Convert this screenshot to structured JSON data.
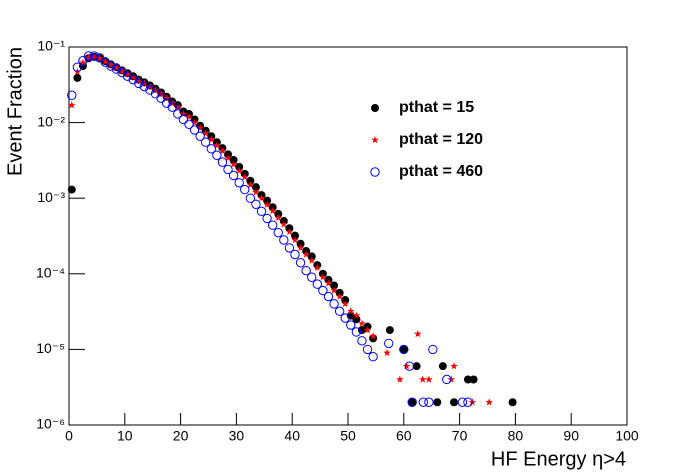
{
  "chart_data": {
    "type": "scatter",
    "x_label": "HF Energy η>4",
    "y_label": "Event Fraction",
    "log_y": true,
    "xlim": [
      0,
      100
    ],
    "xticks": [
      0,
      10,
      20,
      30,
      40,
      50,
      60,
      70,
      80,
      90,
      100
    ],
    "ylim": [
      1e-06,
      0.1
    ],
    "yticks": [
      {
        "value": 1e-06,
        "label": "10⁻⁶"
      },
      {
        "value": 1e-05,
        "label": "10⁻⁵"
      },
      {
        "value": 0.0001,
        "label": "10⁻⁴"
      },
      {
        "value": 0.001,
        "label": "10⁻³"
      },
      {
        "value": 0.01,
        "label": "10⁻²"
      },
      {
        "value": 0.1,
        "label": "10⁻¹"
      }
    ],
    "series": [
      {
        "name": "pthat = 15",
        "color": "#000000",
        "marker": "filled-circle",
        "x": [
          0.5,
          1.5,
          2.5,
          3.5,
          4.5,
          5.5,
          6.5,
          7.5,
          8.5,
          9.5,
          10.5,
          11.5,
          12.5,
          13.5,
          14.5,
          15.5,
          16.5,
          17.5,
          18.5,
          19.5,
          20.5,
          21.5,
          22.5,
          23.5,
          24.5,
          25.5,
          26.5,
          27.5,
          28.5,
          29.5,
          30.5,
          31.5,
          32.5,
          33.5,
          34.5,
          35.5,
          36.5,
          37.5,
          38.5,
          39.5,
          40.5,
          41.5,
          42.5,
          43.5,
          44.5,
          45.5,
          46.5,
          47.5,
          48.5,
          49.5,
          50.5,
          51.5,
          52.5,
          53.5,
          54.5,
          57.5,
          60,
          61.5,
          62.3,
          66,
          67,
          69,
          71.5,
          72.5,
          79.5
        ],
        "values": [
          0.0013,
          0.039,
          0.056,
          0.071,
          0.074,
          0.071,
          0.065,
          0.059,
          0.054,
          0.049,
          0.045,
          0.041,
          0.037,
          0.034,
          0.031,
          0.028,
          0.025,
          0.022,
          0.019,
          0.017,
          0.014,
          0.013,
          0.011,
          0.0091,
          0.0078,
          0.0066,
          0.0055,
          0.0046,
          0.0038,
          0.0032,
          0.0026,
          0.0021,
          0.0017,
          0.0014,
          0.0011,
          0.00093,
          0.00076,
          0.00062,
          0.0005,
          0.0004,
          0.00032,
          0.00025,
          0.0002,
          0.00017,
          0.00013,
          0.0001,
          8.3e-05,
          7e-05,
          5.6e-05,
          4.5e-05,
          2.8e-05,
          2.5e-05,
          1.8e-05,
          2e-05,
          1.4e-05,
          1.8e-05,
          1e-05,
          2e-06,
          6e-06,
          2e-06,
          6e-06,
          2e-06,
          4e-06,
          4e-06,
          2e-06
        ]
      },
      {
        "name": "pthat = 120",
        "color": "#ff0000",
        "marker": "star",
        "x": [
          0.5,
          1.5,
          2.5,
          3.5,
          4.5,
          5.5,
          6.5,
          7.5,
          8.5,
          9.5,
          10.5,
          11.5,
          12.5,
          13.5,
          14.5,
          15.5,
          16.5,
          17.5,
          18.5,
          19.5,
          20.5,
          21.5,
          22.5,
          23.5,
          24.5,
          25.5,
          26.5,
          27.5,
          28.5,
          29.5,
          30.5,
          31.5,
          32.5,
          33.5,
          34.5,
          35.5,
          36.5,
          37.5,
          38.5,
          39.5,
          40.5,
          41.5,
          42.5,
          43.5,
          44.5,
          45.5,
          46.5,
          47.5,
          48.5,
          49.5,
          50.5,
          51.5,
          52.5,
          53.5,
          54.5,
          57,
          59.3,
          60.5,
          62.5,
          63.4,
          64.5,
          68.5,
          69,
          72.3,
          75.3
        ],
        "values": [
          0.017,
          0.047,
          0.062,
          0.072,
          0.074,
          0.071,
          0.064,
          0.058,
          0.053,
          0.048,
          0.044,
          0.04,
          0.036,
          0.033,
          0.03,
          0.027,
          0.024,
          0.021,
          0.018,
          0.016,
          0.013,
          0.012,
          0.01,
          0.0085,
          0.0072,
          0.006,
          0.005,
          0.0042,
          0.0034,
          0.0028,
          0.0023,
          0.0019,
          0.0015,
          0.0012,
          0.001,
          0.00082,
          0.00068,
          0.00055,
          0.00045,
          0.00036,
          0.00028,
          0.00022,
          0.00018,
          0.00015,
          0.00012,
          9e-05,
          7.5e-05,
          6e-05,
          5e-05,
          4e-05,
          3.2e-05,
          2.8e-05,
          2.2e-05,
          1.8e-05,
          1.5e-05,
          9e-06,
          4e-06,
          6e-06,
          1.6e-05,
          4e-06,
          4e-06,
          4e-06,
          6e-06,
          2e-06,
          2e-06
        ]
      },
      {
        "name": "pthat = 460",
        "color": "#0000ff",
        "marker": "open-circle",
        "x": [
          0.5,
          1.5,
          2.5,
          3.5,
          4.5,
          5.5,
          6.5,
          7.5,
          8.5,
          9.5,
          10.5,
          11.5,
          12.5,
          13.5,
          14.5,
          15.5,
          16.5,
          17.5,
          18.5,
          19.5,
          20.5,
          21.5,
          22.5,
          23.5,
          24.5,
          25.5,
          26.5,
          27.5,
          28.5,
          29.5,
          30.5,
          31.5,
          32.5,
          33.5,
          34.5,
          35.5,
          36.5,
          37.5,
          38.5,
          39.5,
          40.5,
          41.5,
          42.5,
          43.5,
          44.5,
          45.5,
          46.5,
          47.5,
          48.5,
          49.5,
          50.5,
          51.5,
          52.5,
          53.5,
          54.5,
          57.3,
          60,
          61,
          61.5,
          63.5,
          64.5,
          65.2,
          67.7,
          70.5,
          71.5
        ],
        "values": [
          0.023,
          0.054,
          0.066,
          0.076,
          0.076,
          0.072,
          0.063,
          0.056,
          0.051,
          0.046,
          0.041,
          0.037,
          0.033,
          0.03,
          0.027,
          0.024,
          0.021,
          0.018,
          0.016,
          0.013,
          0.011,
          0.0095,
          0.008,
          0.0066,
          0.0055,
          0.0045,
          0.0037,
          0.003,
          0.0024,
          0.002,
          0.0016,
          0.0013,
          0.001,
          0.00083,
          0.00067,
          0.00054,
          0.00044,
          0.00035,
          0.00028,
          0.00022,
          0.00018,
          0.00014,
          0.00011,
          9e-05,
          7.3e-05,
          6e-05,
          5e-05,
          4e-05,
          3.2e-05,
          2.6e-05,
          2.1e-05,
          1.7e-05,
          1.3e-05,
          1e-05,
          8e-06,
          1.2e-05,
          1e-05,
          6e-06,
          2e-06,
          2e-06,
          2e-06,
          1e-05,
          4e-06,
          2e-06,
          2e-06
        ]
      }
    ]
  }
}
